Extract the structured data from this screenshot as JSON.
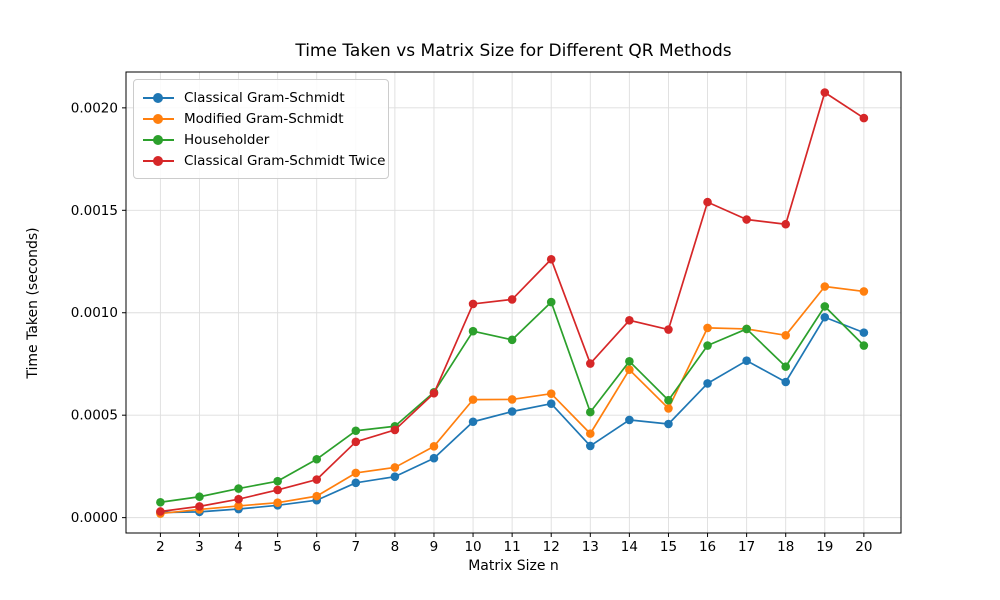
{
  "chart_data": {
    "type": "line",
    "title": "Time Taken vs Matrix Size for Different QR Methods",
    "xlabel": "Matrix Size n",
    "ylabel": "Time Taken (seconds)",
    "x": [
      2,
      3,
      4,
      5,
      6,
      7,
      8,
      9,
      10,
      11,
      12,
      13,
      14,
      15,
      16,
      17,
      18,
      19,
      20
    ],
    "series": [
      {
        "name": "Classical Gram-Schmidt",
        "color": "#1f77b4",
        "values": [
          2.5e-05,
          2.8e-05,
          4.2e-05,
          6e-05,
          8.5e-05,
          0.00017,
          0.0002,
          0.00029,
          0.000468,
          0.000518,
          0.000556,
          0.00035,
          0.000477,
          0.000457,
          0.000655,
          0.000766,
          0.000662,
          0.000978,
          0.000903
        ]
      },
      {
        "name": "Modified Gram-Schmidt",
        "color": "#ff7f0e",
        "values": [
          2e-05,
          4e-05,
          5.7e-05,
          7.3e-05,
          0.000105,
          0.000218,
          0.000245,
          0.000348,
          0.000576,
          0.000577,
          0.000605,
          0.00041,
          0.000722,
          0.000533,
          0.000926,
          0.000921,
          0.00089,
          0.001128,
          0.001104
        ]
      },
      {
        "name": "Householder",
        "color": "#2ca02c",
        "values": [
          7.5e-05,
          0.000102,
          0.000142,
          0.000178,
          0.000285,
          0.000424,
          0.000446,
          0.000612,
          0.00091,
          0.000868,
          0.001052,
          0.000515,
          0.000763,
          0.000573,
          0.00084,
          0.000921,
          0.000737,
          0.001031,
          0.00084
        ]
      },
      {
        "name": "Classical Gram-Schmidt Twice",
        "color": "#d62728",
        "values": [
          3e-05,
          5.5e-05,
          9e-05,
          0.000135,
          0.000186,
          0.00037,
          0.000428,
          0.000607,
          0.001043,
          0.001065,
          0.001261,
          0.000752,
          0.000963,
          0.000918,
          0.00154,
          0.001455,
          0.001432,
          0.002075,
          0.00195
        ]
      }
    ],
    "xlim": [
      1.12,
      20.95
    ],
    "ylim": [
      -7.5e-05,
      0.002175
    ],
    "xticks": [
      2,
      3,
      4,
      5,
      6,
      7,
      8,
      9,
      10,
      11,
      12,
      13,
      14,
      15,
      16,
      17,
      18,
      19,
      20
    ],
    "yticks": [
      0.0,
      0.0005,
      0.001,
      0.0015,
      0.002
    ],
    "ytick_labels": [
      "0.0000",
      "0.0005",
      "0.0010",
      "0.0015",
      "0.0020"
    ],
    "grid": true,
    "legend_position": "upper-left"
  }
}
